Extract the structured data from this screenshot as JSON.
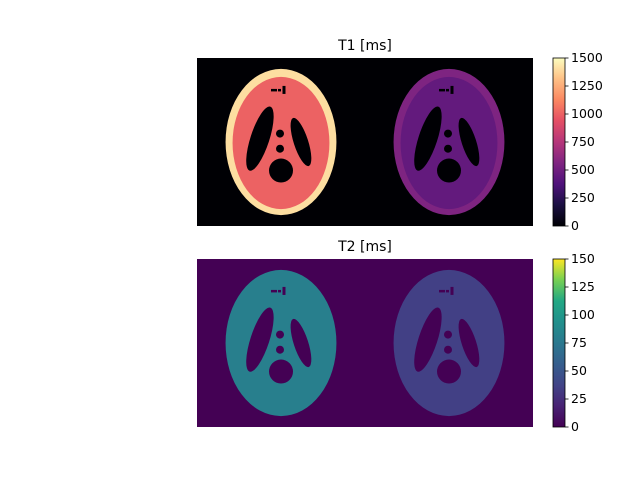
{
  "chart_data": [
    {
      "type": "heatmap",
      "title": "T1 [ms]",
      "colormap": "magma",
      "colorbar": {
        "min": 0,
        "max": 1500,
        "ticks": [
          0,
          250,
          500,
          750,
          1000,
          1250,
          1500
        ]
      },
      "regions": [
        {
          "image": "left",
          "region": "background",
          "value": 0
        },
        {
          "image": "left",
          "region": "outer-ring",
          "value": 1400
        },
        {
          "image": "left",
          "region": "inner-tissue",
          "value": 1000
        },
        {
          "image": "left",
          "region": "ventricles",
          "value": 0
        },
        {
          "image": "right",
          "region": "background",
          "value": 0
        },
        {
          "image": "right",
          "region": "outer-ring",
          "value": 550
        },
        {
          "image": "right",
          "region": "inner-tissue",
          "value": 450
        },
        {
          "image": "right",
          "region": "ventricles",
          "value": 0
        }
      ]
    },
    {
      "type": "heatmap",
      "title": "T2 [ms]",
      "colormap": "viridis",
      "colorbar": {
        "min": 0,
        "max": 150,
        "ticks": [
          0,
          25,
          50,
          75,
          100,
          125,
          150
        ]
      },
      "regions": [
        {
          "image": "left",
          "region": "background",
          "value": 0
        },
        {
          "image": "left",
          "region": "phantom",
          "value": 80
        },
        {
          "image": "left",
          "region": "ventricles",
          "value": 0
        },
        {
          "image": "right",
          "region": "background",
          "value": 0
        },
        {
          "image": "right",
          "region": "phantom",
          "value": 35
        },
        {
          "image": "right",
          "region": "ventricles",
          "value": 0
        }
      ]
    }
  ]
}
